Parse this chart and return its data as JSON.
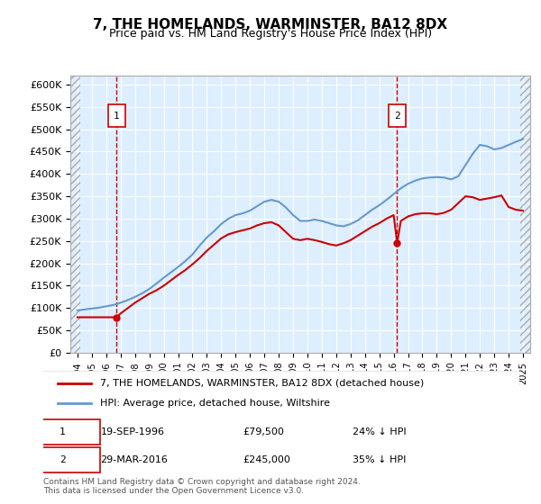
{
  "title": "7, THE HOMELANDS, WARMINSTER, BA12 8DX",
  "subtitle": "Price paid vs. HM Land Registry's House Price Index (HPI)",
  "ylabel_ticks": [
    "£0",
    "£50K",
    "£100K",
    "£150K",
    "£200K",
    "£250K",
    "£300K",
    "£350K",
    "£400K",
    "£450K",
    "£500K",
    "£550K",
    "£600K"
  ],
  "ytick_values": [
    0,
    50000,
    100000,
    150000,
    200000,
    250000,
    300000,
    350000,
    400000,
    450000,
    500000,
    550000,
    600000
  ],
  "xmin": 1993.5,
  "xmax": 2025.5,
  "ymin": 0,
  "ymax": 620000,
  "sale1_date": "19-SEP-1996",
  "sale1_price": 79500,
  "sale1_x": 1996.72,
  "sale1_label": "24% ↓ HPI",
  "sale2_date": "29-MAR-2016",
  "sale2_price": 245000,
  "sale2_x": 2016.24,
  "sale2_label": "35% ↓ HPI",
  "legend_line1": "7, THE HOMELANDS, WARMINSTER, BA12 8DX (detached house)",
  "legend_line2": "HPI: Average price, detached house, Wiltshire",
  "footer": "Contains HM Land Registry data © Crown copyright and database right 2024.\nThis data is licensed under the Open Government Licence v3.0.",
  "line_color_red": "#cc0000",
  "line_color_blue": "#6699cc",
  "background_plot": "#ddeeff",
  "background_hatch": "#cccccc",
  "hpi_x": [
    1994,
    1994.5,
    1995,
    1995.5,
    1996,
    1996.5,
    1997,
    1997.5,
    1998,
    1998.5,
    1999,
    1999.5,
    2000,
    2000.5,
    2001,
    2001.5,
    2002,
    2002.5,
    2003,
    2003.5,
    2004,
    2004.5,
    2005,
    2005.5,
    2006,
    2006.5,
    2007,
    2007.5,
    2008,
    2008.5,
    2009,
    2009.5,
    2010,
    2010.5,
    2011,
    2011.5,
    2012,
    2012.5,
    2013,
    2013.5,
    2014,
    2014.5,
    2015,
    2015.5,
    2016,
    2016.5,
    2017,
    2017.5,
    2018,
    2018.5,
    2019,
    2019.5,
    2020,
    2020.5,
    2021,
    2021.5,
    2022,
    2022.5,
    2023,
    2023.5,
    2024,
    2024.5,
    2025
  ],
  "hpi_y": [
    95000,
    97000,
    99000,
    101000,
    104000,
    107000,
    112000,
    118000,
    125000,
    133000,
    143000,
    155000,
    168000,
    180000,
    192000,
    205000,
    220000,
    240000,
    258000,
    272000,
    288000,
    300000,
    308000,
    312000,
    318000,
    328000,
    338000,
    342000,
    338000,
    325000,
    308000,
    295000,
    295000,
    298000,
    295000,
    290000,
    285000,
    283000,
    288000,
    296000,
    308000,
    320000,
    330000,
    342000,
    355000,
    368000,
    378000,
    385000,
    390000,
    392000,
    393000,
    392000,
    388000,
    395000,
    420000,
    445000,
    465000,
    462000,
    455000,
    458000,
    465000,
    472000,
    478000
  ],
  "price_x": [
    1994,
    1994.5,
    1995,
    1995.5,
    1996,
    1996.5,
    1996.72,
    1997,
    1997.5,
    1998,
    1998.5,
    1999,
    1999.5,
    2000,
    2000.5,
    2001,
    2001.5,
    2002,
    2002.5,
    2003,
    2003.5,
    2004,
    2004.5,
    2005,
    2005.5,
    2006,
    2006.5,
    2007,
    2007.5,
    2008,
    2008.5,
    2009,
    2009.5,
    2010,
    2010.5,
    2011,
    2011.5,
    2012,
    2012.5,
    2013,
    2013.5,
    2014,
    2014.5,
    2015,
    2015.5,
    2016,
    2016.24,
    2016.5,
    2017,
    2017.5,
    2018,
    2018.5,
    2019,
    2019.5,
    2020,
    2020.5,
    2021,
    2021.5,
    2022,
    2022.5,
    2023,
    2023.5,
    2024,
    2024.5,
    2025
  ],
  "price_y": [
    79500,
    79500,
    79500,
    79500,
    79500,
    79500,
    79500,
    88000,
    100000,
    112000,
    122000,
    132000,
    140000,
    150000,
    162000,
    174000,
    185000,
    198000,
    212000,
    228000,
    242000,
    256000,
    265000,
    270000,
    274000,
    278000,
    285000,
    290000,
    292000,
    285000,
    270000,
    255000,
    252000,
    255000,
    252000,
    248000,
    243000,
    240000,
    245000,
    252000,
    262000,
    272000,
    282000,
    290000,
    300000,
    308000,
    245000,
    295000,
    305000,
    310000,
    312000,
    312000,
    310000,
    313000,
    320000,
    335000,
    350000,
    348000,
    342000,
    345000,
    348000,
    352000,
    326000,
    320000,
    318000
  ]
}
